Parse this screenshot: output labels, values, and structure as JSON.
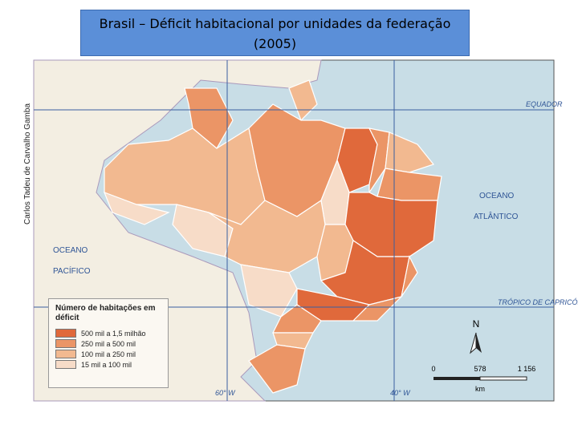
{
  "header": {
    "title": "Brasil – Déficit habitacional por unidades da federação (2005)"
  },
  "credit": "Carlos Tadeu de Carvalho Gamba",
  "legend": {
    "title": "Número de habitações em déficit",
    "items": [
      {
        "label": "500 mil a 1,5 milhão",
        "color": "#e0693b"
      },
      {
        "label": "250 mil a 500 mil",
        "color": "#eb9566"
      },
      {
        "label": "100 mil a 250 mil",
        "color": "#f2b990"
      },
      {
        "label": "15 mil a 100 mil",
        "color": "#f7dcc8"
      }
    ]
  },
  "labels": {
    "equator": "EQUADOR",
    "atlantic": [
      "OCEANO",
      "ATLÂNTICO"
    ],
    "pacific": [
      "OCEANO",
      "PACÍFICO"
    ],
    "tropic": "TRÓPICO DE CAPRICÓRNIO",
    "meridian_60": "60° W",
    "meridian_40": "40° W"
  },
  "scale": {
    "ticks": [
      "0",
      "578",
      "1 156"
    ],
    "unit": "km"
  },
  "north": "N"
}
